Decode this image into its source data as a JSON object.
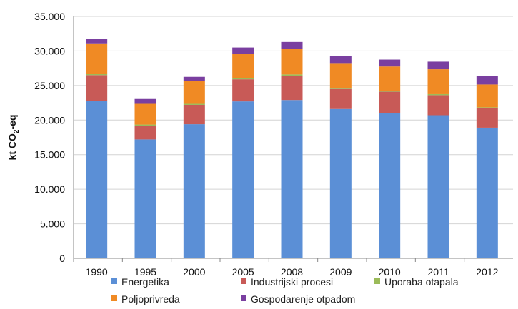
{
  "chart_data": {
    "type": "bar",
    "stacked": true,
    "categories": [
      "1990",
      "1995",
      "2000",
      "2005",
      "2008",
      "2009",
      "2010",
      "2011",
      "2012"
    ],
    "series": [
      {
        "name": "Energetika",
        "color": "#5b8fd6",
        "values": [
          22800,
          17200,
          19400,
          22700,
          22900,
          21600,
          21000,
          20700,
          18900
        ]
      },
      {
        "name": "Industrijski procesi",
        "color": "#c85a57",
        "values": [
          3700,
          2000,
          2800,
          3200,
          3500,
          2900,
          3100,
          2900,
          2800
        ]
      },
      {
        "name": "Uporaba otapala",
        "color": "#9bbb59",
        "values": [
          200,
          150,
          150,
          200,
          200,
          150,
          150,
          150,
          150
        ]
      },
      {
        "name": "Poljoprivreda",
        "color": "#f08a24",
        "values": [
          4400,
          3000,
          3300,
          3500,
          3700,
          3600,
          3500,
          3600,
          3300
        ]
      },
      {
        "name": "Gospodarenje otpadom",
        "color": "#7a3fa0",
        "values": [
          600,
          700,
          600,
          900,
          1000,
          1000,
          1000,
          1100,
          1200
        ]
      }
    ],
    "ylabel_main": "kt CO",
    "ylabel_sub": "2",
    "ylabel_suffix": "-eq",
    "ylim": [
      0,
      35000
    ],
    "yticks": [
      0,
      5000,
      10000,
      15000,
      20000,
      25000,
      30000,
      35000
    ],
    "ytick_labels": [
      "0",
      "5.000",
      "10.000",
      "15.000",
      "20.000",
      "25.000",
      "30.000",
      "35.000"
    ],
    "grid": true,
    "legend_position": "bottom"
  }
}
